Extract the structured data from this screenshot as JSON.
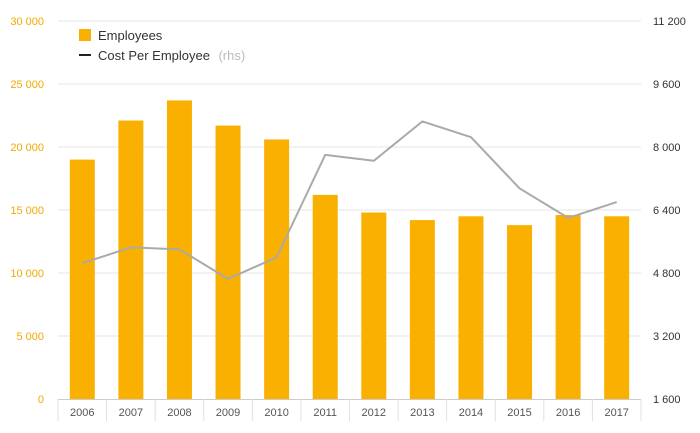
{
  "chart_data": {
    "type": "bar",
    "categories": [
      "2006",
      "2007",
      "2008",
      "2009",
      "2010",
      "2011",
      "2012",
      "2013",
      "2014",
      "2015",
      "2016",
      "2017"
    ],
    "series": [
      {
        "name": "Employees",
        "type": "bar",
        "axis": "left",
        "color": "#f9b000",
        "values": [
          19000,
          22100,
          23700,
          21700,
          20600,
          16200,
          14800,
          14200,
          14500,
          13800,
          14600,
          14500
        ]
      },
      {
        "name": "Cost Per Employee",
        "name_suffix": "(rhs)",
        "type": "line",
        "axis": "right",
        "color": "#aaaaaa",
        "legend_color": "#222222",
        "values": [
          5050,
          5450,
          5400,
          4650,
          5200,
          7800,
          7650,
          8650,
          8250,
          6950,
          6200,
          6600
        ]
      }
    ],
    "y_left": {
      "range": [
        0,
        30000
      ],
      "ticks": [
        0,
        5000,
        10000,
        15000,
        20000,
        25000,
        30000
      ],
      "tick_labels": [
        "0",
        "5 000",
        "10 000",
        "15 000",
        "20 000",
        "25 000",
        "30 000"
      ],
      "color": "#f2a900"
    },
    "y_right": {
      "range": [
        1600,
        11200
      ],
      "ticks": [
        1600,
        3200,
        4800,
        6400,
        8000,
        9600,
        11200
      ],
      "tick_labels": [
        "1 600",
        "3 200",
        "4 800",
        "6 400",
        "8 000",
        "9 600",
        "11 200"
      ]
    },
    "grid": true,
    "legend_position": "top-left"
  }
}
